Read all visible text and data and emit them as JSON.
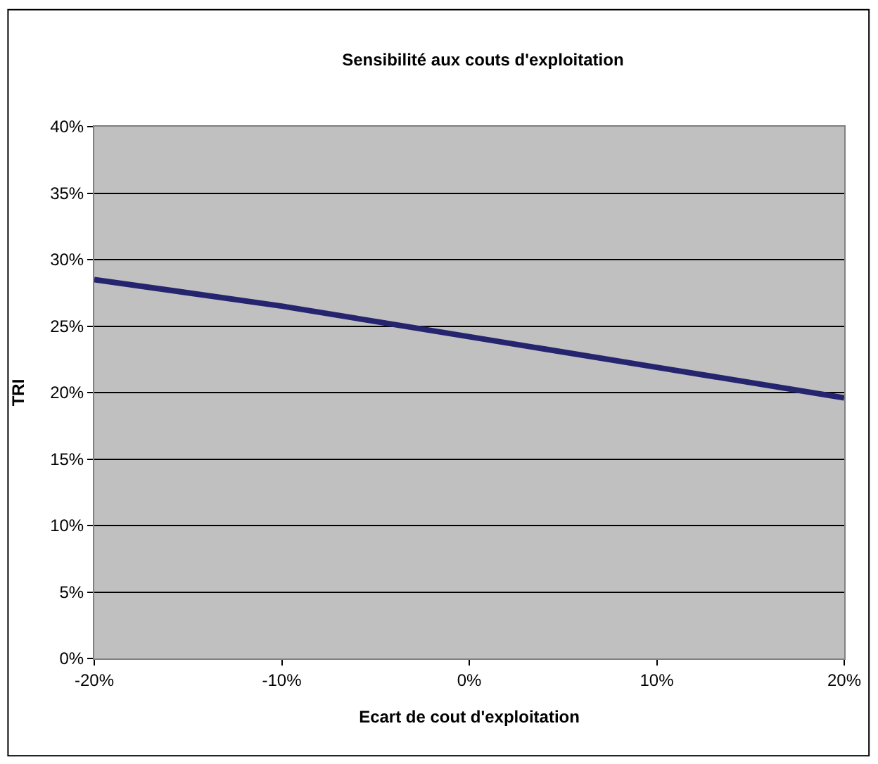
{
  "chart_data": {
    "type": "line",
    "title": "Sensibilité aux couts d'exploitation",
    "xlabel": "Ecart de cout d'exploitation",
    "ylabel": "TRI",
    "x": [
      -20,
      -10,
      0,
      10,
      20
    ],
    "series": [
      {
        "color": "#25256f",
        "values": [
          28.5,
          26.5,
          24.2,
          21.9,
          19.6
        ]
      }
    ],
    "xlim": [
      -20,
      20
    ],
    "xticks": [
      {
        "value": -20,
        "label": "-20%"
      },
      {
        "value": -10,
        "label": "-10%"
      },
      {
        "value": 0,
        "label": "0%"
      },
      {
        "value": 10,
        "label": "10%"
      },
      {
        "value": 20,
        "label": "20%"
      }
    ],
    "ylim": [
      0,
      40
    ],
    "yticks": [
      {
        "value": 0,
        "label": "0%"
      },
      {
        "value": 5,
        "label": "5%"
      },
      {
        "value": 10,
        "label": "10%"
      },
      {
        "value": 15,
        "label": "15%"
      },
      {
        "value": 20,
        "label": "20%"
      },
      {
        "value": 25,
        "label": "25%"
      },
      {
        "value": 30,
        "label": "30%"
      },
      {
        "value": 35,
        "label": "35%"
      },
      {
        "value": 40,
        "label": "40%"
      }
    ],
    "grid": "y",
    "marker": "none",
    "line_style": "solid"
  }
}
